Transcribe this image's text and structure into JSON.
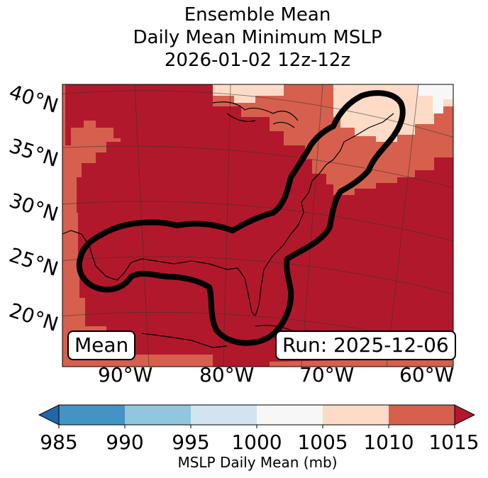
{
  "title": {
    "line1": "Ensemble Mean",
    "line2": "Daily Mean Minimum MSLP",
    "line3": "2026-01-02 12z-12z"
  },
  "map": {
    "lat_labels": [
      "40°N",
      "35°N",
      "30°N",
      "25°N",
      "20°N"
    ],
    "lon_labels": [
      "90°W",
      "80°W",
      "70°W",
      "60°W"
    ],
    "mean_box": "Mean",
    "run_box": "Run: 2025-12-06",
    "colors": {
      "c1010_1015": "#b2182b",
      "c1005_1010": "#d6604d",
      "c1000_1005": "#fddbc7",
      "c995_1000": "#f7f7f7"
    }
  },
  "colorbar": {
    "ticks": [
      "985",
      "990",
      "995",
      "1000",
      "1005",
      "1010",
      "1015"
    ],
    "colors": [
      "#4393c3",
      "#92c5de",
      "#d1e5f0",
      "#f7f7f7",
      "#fddbc7",
      "#d6604d"
    ],
    "under_color": "#2166ac",
    "over_color": "#b2182b",
    "label": "MSLP Daily Mean (mb)"
  }
}
